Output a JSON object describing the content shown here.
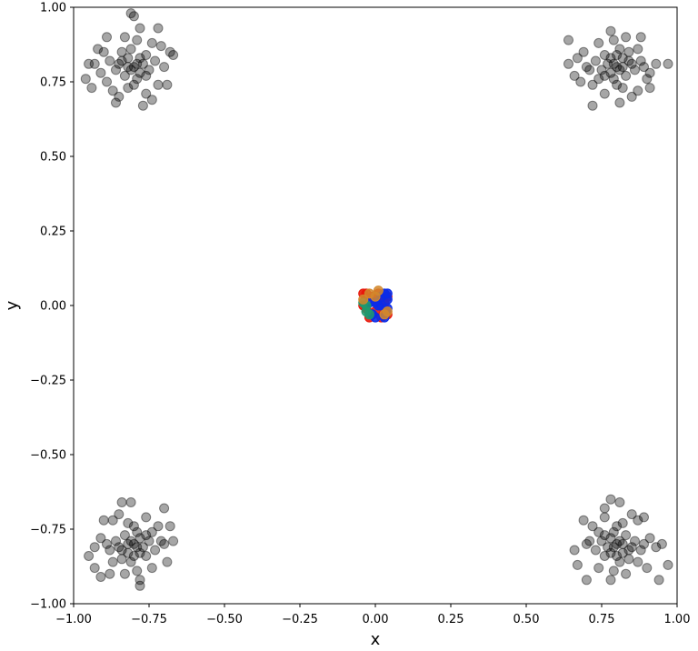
{
  "chart_data": {
    "type": "scatter",
    "title": "",
    "xlabel": "x",
    "ylabel": "y",
    "xlim": [
      -1.0,
      1.0
    ],
    "ylim": [
      -1.0,
      1.0
    ],
    "grid": false,
    "x_ticks": [
      "−1.00",
      "−0.75",
      "−0.50",
      "−0.25",
      "0.00",
      "0.25",
      "0.50",
      "0.75",
      "1.00"
    ],
    "y_ticks": [
      "−1.00",
      "−0.75",
      "−0.50",
      "−0.25",
      "0.00",
      "0.25",
      "0.50",
      "0.75",
      "1.00"
    ],
    "x_tick_values": [
      -1.0,
      -0.75,
      -0.5,
      -0.25,
      0.0,
      0.25,
      0.5,
      0.75,
      1.0
    ],
    "y_tick_values": [
      -1.0,
      -0.75,
      -0.5,
      -0.25,
      0.0,
      0.25,
      0.5,
      0.75,
      1.0
    ],
    "colors": {
      "cluster": "#000000",
      "center_red": "#e8170a",
      "center_blue": "#0a2be8",
      "center_green": "#1f9a6f",
      "center_orange": "#d2872c"
    },
    "series": [
      {
        "color": "#000000",
        "alpha": 0.35,
        "points": [
          [
            -0.8,
            0.8
          ],
          [
            -0.82,
            0.83
          ],
          [
            -0.78,
            0.78
          ],
          [
            -0.85,
            0.81
          ],
          [
            -0.76,
            0.84
          ],
          [
            -0.79,
            0.76
          ],
          [
            -0.83,
            0.77
          ],
          [
            -0.81,
            0.86
          ],
          [
            -0.77,
            0.81
          ],
          [
            -0.84,
            0.85
          ],
          [
            -0.86,
            0.79
          ],
          [
            -0.75,
            0.79
          ],
          [
            -0.8,
            0.74
          ],
          [
            -0.79,
            0.89
          ],
          [
            -0.88,
            0.82
          ],
          [
            -0.73,
            0.82
          ],
          [
            -0.82,
            0.73
          ],
          [
            -0.83,
            0.9
          ],
          [
            -0.91,
            0.78
          ],
          [
            -0.7,
            0.8
          ],
          [
            -0.87,
            0.72
          ],
          [
            -0.74,
            0.88
          ],
          [
            -0.92,
            0.86
          ],
          [
            -0.72,
            0.74
          ],
          [
            -0.78,
            0.93
          ],
          [
            -0.93,
            0.81
          ],
          [
            -0.68,
            0.85
          ],
          [
            -0.85,
            0.7
          ],
          [
            -0.76,
            0.71
          ],
          [
            -0.81,
            0.98
          ],
          [
            -0.8,
            0.97
          ],
          [
            -0.96,
            0.76
          ],
          [
            -0.95,
            0.81
          ],
          [
            -0.89,
            0.75
          ],
          [
            -0.67,
            0.84
          ],
          [
            -0.69,
            0.74
          ],
          [
            -0.74,
            0.69
          ],
          [
            -0.77,
            0.67
          ],
          [
            -0.86,
            0.68
          ],
          [
            -0.72,
            0.93
          ],
          [
            -0.89,
            0.9
          ],
          [
            -0.94,
            0.73
          ],
          [
            -0.9,
            0.85
          ],
          [
            -0.71,
            0.87
          ],
          [
            -0.79,
            0.81
          ],
          [
            -0.81,
            0.79
          ],
          [
            -0.82,
            0.8
          ],
          [
            -0.78,
            0.83
          ],
          [
            -0.84,
            0.82
          ],
          [
            -0.76,
            0.77
          ]
        ]
      },
      {
        "color": "#000000",
        "alpha": 0.35,
        "points": [
          [
            0.8,
            0.8
          ],
          [
            0.82,
            0.83
          ],
          [
            0.78,
            0.78
          ],
          [
            0.85,
            0.81
          ],
          [
            0.76,
            0.84
          ],
          [
            0.79,
            0.76
          ],
          [
            0.83,
            0.77
          ],
          [
            0.81,
            0.86
          ],
          [
            0.77,
            0.81
          ],
          [
            0.84,
            0.85
          ],
          [
            0.86,
            0.79
          ],
          [
            0.75,
            0.79
          ],
          [
            0.8,
            0.74
          ],
          [
            0.79,
            0.89
          ],
          [
            0.88,
            0.82
          ],
          [
            0.73,
            0.82
          ],
          [
            0.82,
            0.73
          ],
          [
            0.83,
            0.9
          ],
          [
            0.91,
            0.78
          ],
          [
            0.7,
            0.8
          ],
          [
            0.87,
            0.72
          ],
          [
            0.74,
            0.88
          ],
          [
            0.72,
            0.74
          ],
          [
            0.78,
            0.92
          ],
          [
            0.93,
            0.81
          ],
          [
            0.85,
            0.7
          ],
          [
            0.76,
            0.71
          ],
          [
            0.64,
            0.89
          ],
          [
            0.64,
            0.81
          ],
          [
            0.66,
            0.77
          ],
          [
            0.97,
            0.81
          ],
          [
            0.91,
            0.73
          ],
          [
            0.69,
            0.85
          ],
          [
            0.72,
            0.67
          ],
          [
            0.81,
            0.68
          ],
          [
            0.88,
            0.9
          ],
          [
            0.9,
            0.76
          ],
          [
            0.67,
            0.83
          ],
          [
            0.68,
            0.75
          ],
          [
            0.79,
            0.81
          ],
          [
            0.81,
            0.79
          ],
          [
            0.82,
            0.8
          ],
          [
            0.78,
            0.83
          ],
          [
            0.84,
            0.82
          ],
          [
            0.76,
            0.77
          ],
          [
            0.87,
            0.86
          ],
          [
            0.74,
            0.76
          ],
          [
            0.8,
            0.84
          ],
          [
            0.71,
            0.79
          ],
          [
            0.89,
            0.8
          ]
        ]
      },
      {
        "color": "#000000",
        "alpha": 0.35,
        "points": [
          [
            -0.8,
            -0.8
          ],
          [
            -0.82,
            -0.83
          ],
          [
            -0.78,
            -0.78
          ],
          [
            -0.85,
            -0.81
          ],
          [
            -0.76,
            -0.84
          ],
          [
            -0.79,
            -0.76
          ],
          [
            -0.83,
            -0.77
          ],
          [
            -0.81,
            -0.86
          ],
          [
            -0.77,
            -0.81
          ],
          [
            -0.84,
            -0.85
          ],
          [
            -0.86,
            -0.79
          ],
          [
            -0.75,
            -0.79
          ],
          [
            -0.8,
            -0.74
          ],
          [
            -0.79,
            -0.89
          ],
          [
            -0.88,
            -0.82
          ],
          [
            -0.73,
            -0.82
          ],
          [
            -0.82,
            -0.73
          ],
          [
            -0.83,
            -0.9
          ],
          [
            -0.91,
            -0.78
          ],
          [
            -0.7,
            -0.8
          ],
          [
            -0.87,
            -0.72
          ],
          [
            -0.74,
            -0.88
          ],
          [
            -0.72,
            -0.74
          ],
          [
            -0.78,
            -0.92
          ],
          [
            -0.93,
            -0.81
          ],
          [
            -0.85,
            -0.7
          ],
          [
            -0.76,
            -0.71
          ],
          [
            -0.81,
            -0.66
          ],
          [
            -0.84,
            -0.66
          ],
          [
            -0.95,
            -0.84
          ],
          [
            -0.93,
            -0.88
          ],
          [
            -0.9,
            -0.72
          ],
          [
            -0.68,
            -0.74
          ],
          [
            -0.69,
            -0.86
          ],
          [
            -0.7,
            -0.68
          ],
          [
            -0.78,
            -0.94
          ],
          [
            -0.88,
            -0.9
          ],
          [
            -0.91,
            -0.91
          ],
          [
            -0.67,
            -0.79
          ],
          [
            -0.79,
            -0.81
          ],
          [
            -0.81,
            -0.79
          ],
          [
            -0.82,
            -0.8
          ],
          [
            -0.78,
            -0.83
          ],
          [
            -0.84,
            -0.82
          ],
          [
            -0.76,
            -0.77
          ],
          [
            -0.87,
            -0.86
          ],
          [
            -0.74,
            -0.76
          ],
          [
            -0.8,
            -0.84
          ],
          [
            -0.71,
            -0.79
          ],
          [
            -0.89,
            -0.8
          ]
        ]
      },
      {
        "color": "#000000",
        "alpha": 0.35,
        "points": [
          [
            0.8,
            -0.8
          ],
          [
            0.82,
            -0.83
          ],
          [
            0.78,
            -0.78
          ],
          [
            0.85,
            -0.81
          ],
          [
            0.76,
            -0.84
          ],
          [
            0.79,
            -0.76
          ],
          [
            0.83,
            -0.77
          ],
          [
            0.81,
            -0.86
          ],
          [
            0.77,
            -0.81
          ],
          [
            0.84,
            -0.85
          ],
          [
            0.86,
            -0.79
          ],
          [
            0.75,
            -0.79
          ],
          [
            0.8,
            -0.74
          ],
          [
            0.79,
            -0.89
          ],
          [
            0.88,
            -0.82
          ],
          [
            0.73,
            -0.82
          ],
          [
            0.82,
            -0.73
          ],
          [
            0.83,
            -0.9
          ],
          [
            0.91,
            -0.78
          ],
          [
            0.7,
            -0.8
          ],
          [
            0.87,
            -0.72
          ],
          [
            0.74,
            -0.88
          ],
          [
            0.72,
            -0.74
          ],
          [
            0.78,
            -0.92
          ],
          [
            0.93,
            -0.81
          ],
          [
            0.85,
            -0.7
          ],
          [
            0.76,
            -0.71
          ],
          [
            0.78,
            -0.65
          ],
          [
            0.81,
            -0.66
          ],
          [
            0.76,
            -0.68
          ],
          [
            0.66,
            -0.82
          ],
          [
            0.7,
            -0.92
          ],
          [
            0.94,
            -0.92
          ],
          [
            0.95,
            -0.8
          ],
          [
            0.97,
            -0.87
          ],
          [
            0.89,
            -0.71
          ],
          [
            0.9,
            -0.88
          ],
          [
            0.69,
            -0.72
          ],
          [
            0.67,
            -0.87
          ],
          [
            0.79,
            -0.81
          ],
          [
            0.81,
            -0.79
          ],
          [
            0.82,
            -0.8
          ],
          [
            0.78,
            -0.83
          ],
          [
            0.84,
            -0.82
          ],
          [
            0.76,
            -0.77
          ],
          [
            0.87,
            -0.86
          ],
          [
            0.74,
            -0.76
          ],
          [
            0.8,
            -0.84
          ],
          [
            0.71,
            -0.79
          ],
          [
            0.89,
            -0.8
          ]
        ]
      },
      {
        "color": "#e8170a",
        "alpha": 0.9,
        "points": [
          [
            -0.03,
            0.04
          ],
          [
            -0.01,
            0.03
          ],
          [
            0.01,
            0.04
          ],
          [
            0.02,
            -0.04
          ],
          [
            0.04,
            -0.03
          ],
          [
            0.03,
            0.01
          ],
          [
            -0.04,
            0.0
          ],
          [
            0.0,
            -0.02
          ],
          [
            0.04,
            0.03
          ],
          [
            -0.02,
            -0.04
          ],
          [
            0.01,
            0.02
          ],
          [
            -0.03,
            -0.01
          ],
          [
            0.03,
            -0.01
          ],
          [
            -0.04,
            0.04
          ],
          [
            0.02,
            0.03
          ]
        ]
      },
      {
        "color": "#0a2be8",
        "alpha": 0.9,
        "points": [
          [
            0.03,
            0.04
          ],
          [
            0.04,
            0.02
          ],
          [
            0.02,
            0.0
          ],
          [
            0.04,
            -0.01
          ],
          [
            0.01,
            0.0
          ],
          [
            0.0,
            -0.04
          ],
          [
            -0.02,
            0.01
          ],
          [
            0.02,
            0.03
          ],
          [
            0.03,
            -0.04
          ],
          [
            0.04,
            0.04
          ],
          [
            -0.01,
            -0.03
          ],
          [
            0.0,
            0.01
          ]
        ]
      },
      {
        "color": "#1f9a6f",
        "alpha": 0.85,
        "points": [
          [
            -0.03,
            -0.02
          ],
          [
            -0.04,
            0.01
          ],
          [
            -0.02,
            -0.03
          ],
          [
            -0.03,
            0.0
          ]
        ]
      },
      {
        "color": "#d2872c",
        "alpha": 0.85,
        "points": [
          [
            -0.02,
            0.04
          ],
          [
            0.01,
            0.05
          ],
          [
            0.04,
            -0.02
          ],
          [
            0.03,
            -0.03
          ],
          [
            -0.04,
            0.02
          ],
          [
            0.0,
            0.03
          ]
        ]
      }
    ]
  }
}
